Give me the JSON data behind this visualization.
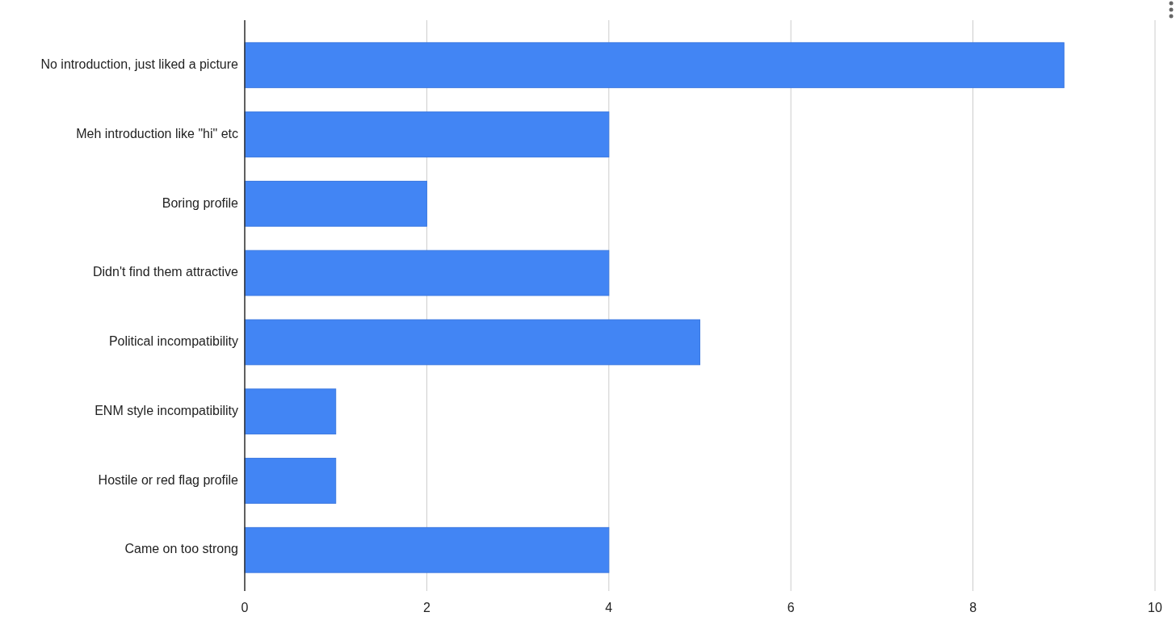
{
  "chart_data": {
    "type": "bar",
    "orientation": "horizontal",
    "categories": [
      "No introduction, just liked a picture",
      "Meh introduction like \"hi\" etc",
      "Boring profile",
      "Didn't find them attractive",
      "Political incompatibility",
      "ENM style incompatibility",
      "Hostile or red flag profile",
      "Came on too strong"
    ],
    "values": [
      9,
      4,
      2,
      4,
      5,
      1,
      1,
      4
    ],
    "color": "#4285f4",
    "xlim": [
      0,
      10
    ],
    "xticks": [
      0,
      2,
      4,
      6,
      8,
      10
    ],
    "grid": "x"
  }
}
